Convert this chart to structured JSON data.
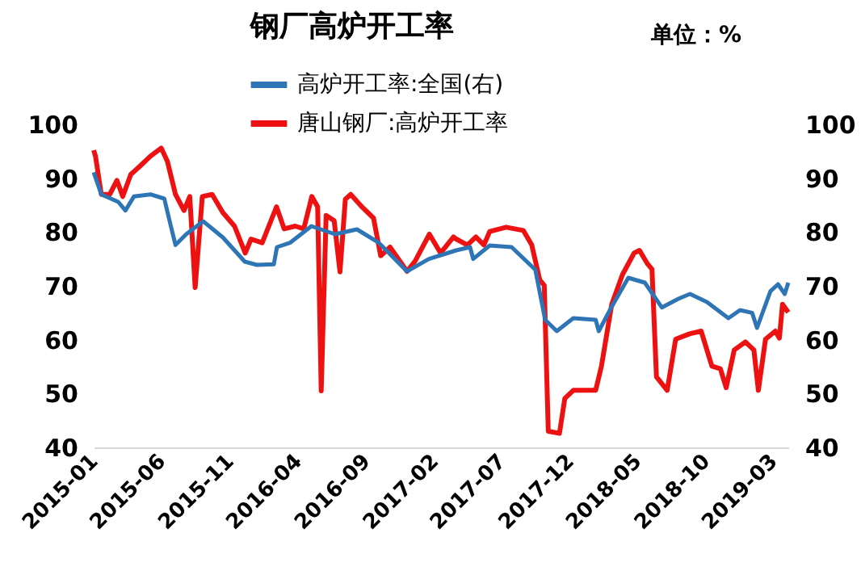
{
  "chart_data": {
    "type": "line",
    "title": "钢厂高炉开工率",
    "annotations": [
      "单位：%"
    ],
    "xlim": [
      "2015-01-01",
      "2019-04-04"
    ],
    "xticks": [
      "2015-01",
      "2015-06",
      "2015-11",
      "2016-04",
      "2016-09",
      "2017-02",
      "2017-07",
      "2017-12",
      "2018-05",
      "2018-10",
      "2019-03"
    ],
    "ylim": [
      40,
      100
    ],
    "yticks": [
      40,
      50,
      60,
      70,
      80,
      90,
      100
    ],
    "y2lim": [
      40,
      100
    ],
    "y2ticks": [
      40,
      50,
      60,
      70,
      80,
      90,
      100
    ],
    "legend": "top",
    "grid": false,
    "marker": "none",
    "line_style": "solid",
    "series": [
      {
        "name": "高炉开工率:全国(右)",
        "color": "#2e75b6",
        "axis": "y2",
        "x": [
          "2015-01-01",
          "2015-01-18",
          "2015-02-25",
          "2015-03-13",
          "2015-04-01",
          "2015-05-08",
          "2015-06-08",
          "2015-06-20",
          "2015-07-03",
          "2015-07-27",
          "2015-09-03",
          "2015-10-17",
          "2015-12-05",
          "2016-01-01",
          "2016-02-08",
          "2016-02-15",
          "2016-03-15",
          "2016-05-02",
          "2016-06-24",
          "2016-08-12",
          "2016-09-30",
          "2016-12-02",
          "2017-01-20",
          "2017-03-22",
          "2017-04-22",
          "2017-04-29",
          "2017-06-05",
          "2017-07-24",
          "2017-09-15",
          "2017-10-07",
          "2017-11-02",
          "2017-12-09",
          "2018-01-28",
          "2018-02-04",
          "2018-03-04",
          "2018-04-11",
          "2018-05-18",
          "2018-06-25",
          "2018-08-01",
          "2018-08-27",
          "2018-10-04",
          "2018-11-21",
          "2018-12-17",
          "2019-01-13",
          "2019-01-24",
          "2019-02-23",
          "2019-03-12",
          "2019-03-27",
          "2019-04-04"
        ],
        "values": [
          91.1,
          87,
          85.6,
          84,
          86.6,
          87,
          86.2,
          82,
          77.6,
          79.6,
          82,
          79,
          74.5,
          73.9,
          74,
          77.2,
          78,
          81.1,
          79.6,
          80.5,
          78,
          72.7,
          75,
          76.6,
          77.2,
          75,
          77.5,
          77.2,
          73,
          63.7,
          61.6,
          64,
          63.7,
          61.6,
          66,
          71.5,
          70.6,
          66,
          67.6,
          68.5,
          67,
          64,
          65.5,
          65,
          62.2,
          69,
          70.3,
          68.5,
          70.6
        ]
      },
      {
        "name": "唐山钢厂:高炉开工率",
        "color": "#ee1111",
        "x": [
          "2015-01-01",
          "2015-01-05",
          "2015-01-18",
          "2015-02-06",
          "2015-02-22",
          "2015-03-07",
          "2015-03-25",
          "2015-04-14",
          "2015-05-08",
          "2015-06-01",
          "2015-06-15",
          "2015-07-03",
          "2015-07-22",
          "2015-08-04",
          "2015-08-16",
          "2015-09-01",
          "2015-09-23",
          "2015-10-17",
          "2015-11-12",
          "2015-12-06",
          "2015-12-19",
          "2016-01-13",
          "2016-02-14",
          "2016-03-02",
          "2016-03-27",
          "2016-04-15",
          "2016-05-03",
          "2016-05-16",
          "2016-05-24",
          "2016-06-04",
          "2016-06-22",
          "2016-07-05",
          "2016-07-17",
          "2016-07-29",
          "2016-08-24",
          "2016-09-18",
          "2016-10-04",
          "2016-10-25",
          "2016-12-02",
          "2016-12-20",
          "2017-01-21",
          "2017-02-15",
          "2017-03-16",
          "2017-03-22",
          "2017-04-16",
          "2017-05-05",
          "2017-05-23",
          "2017-06-05",
          "2017-07-12",
          "2017-08-19",
          "2017-09-07",
          "2017-09-25",
          "2017-10-05",
          "2017-10-14",
          "2017-11-08",
          "2017-11-20",
          "2017-12-09",
          "2018-01-28",
          "2018-02-10",
          "2018-03-05",
          "2018-03-29",
          "2018-04-24",
          "2018-05-06",
          "2018-05-24",
          "2018-06-03",
          "2018-06-13",
          "2018-07-07",
          "2018-07-26",
          "2018-08-26",
          "2018-09-21",
          "2018-10-15",
          "2018-11-03",
          "2018-11-16",
          "2018-12-04",
          "2018-12-29",
          "2019-01-17",
          "2019-01-27",
          "2019-02-12",
          "2019-03-06",
          "2019-03-15",
          "2019-03-22",
          "2019-04-04"
        ],
        "values": [
          95.2,
          94.1,
          87,
          87,
          89.6,
          86.6,
          90.7,
          92.2,
          94.1,
          95.6,
          93.1,
          87,
          84,
          86.6,
          69.7,
          86.6,
          87,
          83.6,
          81.1,
          76.1,
          78.7,
          78,
          84.7,
          80.6,
          81.1,
          80.6,
          86.6,
          84.7,
          50.5,
          83.1,
          82.1,
          72.6,
          86.1,
          87,
          84.6,
          82.6,
          75.6,
          77.2,
          72.7,
          74.6,
          79.6,
          76.1,
          79.1,
          78.7,
          77.6,
          79.1,
          77.6,
          80.1,
          80.9,
          80.3,
          77.6,
          71.1,
          70.1,
          43,
          42.6,
          49.1,
          50.6,
          50.6,
          55.1,
          66.6,
          72.1,
          76.1,
          76.6,
          74.1,
          73.1,
          53.1,
          50.6,
          60.1,
          61.1,
          61.6,
          55.1,
          54.6,
          51.1,
          58.1,
          59.6,
          58.1,
          50.6,
          60.1,
          61.6,
          60.3,
          66.6,
          65.1
        ]
      }
    ]
  }
}
